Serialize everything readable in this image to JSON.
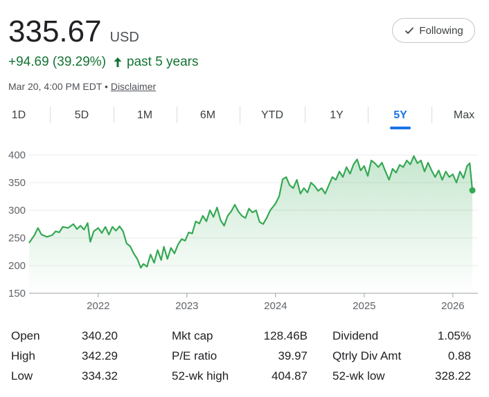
{
  "quote": {
    "price": "335.67",
    "currency": "USD",
    "change": "+94.69 (39.29%)",
    "change_period": "past 5 years",
    "timestamp": "Mar 20, 4:00 PM EDT",
    "separator": "•",
    "disclaimer": "Disclaimer",
    "follow_label": "Following"
  },
  "ranges": [
    {
      "label": "1D",
      "active": false
    },
    {
      "label": "5D",
      "active": false
    },
    {
      "label": "1M",
      "active": false
    },
    {
      "label": "6M",
      "active": false
    },
    {
      "label": "YTD",
      "active": false
    },
    {
      "label": "1Y",
      "active": false
    },
    {
      "label": "5Y",
      "active": true
    },
    {
      "label": "Max",
      "active": false
    }
  ],
  "colors": {
    "line": "#34a853",
    "positive_text": "#137333",
    "accent": "#1a73e8"
  },
  "chart_data": {
    "type": "area",
    "x_unit": "year",
    "ylim": [
      150,
      400
    ],
    "xlim": [
      2021.22,
      2026.22
    ],
    "y_ticks": [
      150,
      200,
      250,
      300,
      350,
      400
    ],
    "x_ticks": [
      "2022",
      "2023",
      "2024",
      "2025",
      "2026"
    ],
    "x_tick_values": [
      2022,
      2023,
      2024,
      2025,
      2026
    ],
    "grid": true,
    "series": [
      {
        "points": [
          [
            2021.22,
            241
          ],
          [
            2021.28,
            255
          ],
          [
            2021.32,
            268
          ],
          [
            2021.36,
            256
          ],
          [
            2021.42,
            252
          ],
          [
            2021.48,
            255
          ],
          [
            2021.52,
            262
          ],
          [
            2021.56,
            260
          ],
          [
            2021.6,
            270
          ],
          [
            2021.66,
            268
          ],
          [
            2021.72,
            275
          ],
          [
            2021.76,
            266
          ],
          [
            2021.8,
            272
          ],
          [
            2021.84,
            265
          ],
          [
            2021.88,
            277
          ],
          [
            2021.91,
            243
          ],
          [
            2021.95,
            262
          ],
          [
            2022.0,
            268
          ],
          [
            2022.04,
            259
          ],
          [
            2022.08,
            270
          ],
          [
            2022.12,
            256
          ],
          [
            2022.16,
            270
          ],
          [
            2022.2,
            263
          ],
          [
            2022.24,
            271
          ],
          [
            2022.28,
            262
          ],
          [
            2022.32,
            240
          ],
          [
            2022.36,
            235
          ],
          [
            2022.4,
            222
          ],
          [
            2022.44,
            212
          ],
          [
            2022.48,
            196
          ],
          [
            2022.51,
            203
          ],
          [
            2022.55,
            198
          ],
          [
            2022.59,
            220
          ],
          [
            2022.63,
            205
          ],
          [
            2022.67,
            228
          ],
          [
            2022.71,
            210
          ],
          [
            2022.74,
            234
          ],
          [
            2022.78,
            212
          ],
          [
            2022.82,
            232
          ],
          [
            2022.86,
            222
          ],
          [
            2022.9,
            238
          ],
          [
            2022.94,
            248
          ],
          [
            2022.98,
            245
          ],
          [
            2023.02,
            260
          ],
          [
            2023.06,
            258
          ],
          [
            2023.1,
            280
          ],
          [
            2023.14,
            276
          ],
          [
            2023.18,
            290
          ],
          [
            2023.22,
            280
          ],
          [
            2023.26,
            300
          ],
          [
            2023.3,
            288
          ],
          [
            2023.34,
            305
          ],
          [
            2023.38,
            282
          ],
          [
            2023.42,
            272
          ],
          [
            2023.46,
            290
          ],
          [
            2023.5,
            298
          ],
          [
            2023.54,
            310
          ],
          [
            2023.58,
            298
          ],
          [
            2023.62,
            290
          ],
          [
            2023.66,
            286
          ],
          [
            2023.7,
            303
          ],
          [
            2023.74,
            296
          ],
          [
            2023.78,
            300
          ],
          [
            2023.82,
            279
          ],
          [
            2023.86,
            275
          ],
          [
            2023.9,
            286
          ],
          [
            2023.94,
            300
          ],
          [
            2024.0,
            312
          ],
          [
            2024.04,
            325
          ],
          [
            2024.08,
            356
          ],
          [
            2024.12,
            360
          ],
          [
            2024.16,
            345
          ],
          [
            2024.2,
            340
          ],
          [
            2024.24,
            355
          ],
          [
            2024.28,
            330
          ],
          [
            2024.32,
            340
          ],
          [
            2024.36,
            332
          ],
          [
            2024.4,
            350
          ],
          [
            2024.44,
            344
          ],
          [
            2024.48,
            335
          ],
          [
            2024.52,
            340
          ],
          [
            2024.56,
            330
          ],
          [
            2024.6,
            345
          ],
          [
            2024.64,
            360
          ],
          [
            2024.68,
            355
          ],
          [
            2024.72,
            370
          ],
          [
            2024.76,
            360
          ],
          [
            2024.8,
            378
          ],
          [
            2024.84,
            366
          ],
          [
            2024.88,
            383
          ],
          [
            2024.92,
            392
          ],
          [
            2024.96,
            372
          ],
          [
            2025.0,
            380
          ],
          [
            2025.04,
            362
          ],
          [
            2025.08,
            390
          ],
          [
            2025.12,
            385
          ],
          [
            2025.16,
            378
          ],
          [
            2025.2,
            386
          ],
          [
            2025.24,
            370
          ],
          [
            2025.28,
            355
          ],
          [
            2025.32,
            375
          ],
          [
            2025.36,
            368
          ],
          [
            2025.4,
            382
          ],
          [
            2025.44,
            378
          ],
          [
            2025.48,
            390
          ],
          [
            2025.52,
            383
          ],
          [
            2025.56,
            398
          ],
          [
            2025.6,
            385
          ],
          [
            2025.64,
            390
          ],
          [
            2025.68,
            370
          ],
          [
            2025.72,
            386
          ],
          [
            2025.76,
            372
          ],
          [
            2025.8,
            360
          ],
          [
            2025.84,
            372
          ],
          [
            2025.88,
            355
          ],
          [
            2025.92,
            370
          ],
          [
            2025.96,
            360
          ],
          [
            2026.0,
            365
          ],
          [
            2026.04,
            350
          ],
          [
            2026.08,
            370
          ],
          [
            2026.12,
            358
          ],
          [
            2026.16,
            380
          ],
          [
            2026.19,
            385
          ],
          [
            2026.22,
            336
          ]
        ]
      }
    ]
  },
  "stats": [
    [
      {
        "label": "Open",
        "value": "340.20"
      },
      {
        "label": "Mkt cap",
        "value": "128.46B"
      },
      {
        "label": "Dividend",
        "value": "1.05%"
      }
    ],
    [
      {
        "label": "High",
        "value": "342.29"
      },
      {
        "label": "P/E ratio",
        "value": "39.97"
      },
      {
        "label": "Qtrly Div Amt",
        "value": "0.88"
      }
    ],
    [
      {
        "label": "Low",
        "value": "334.32"
      },
      {
        "label": "52-wk high",
        "value": "404.87"
      },
      {
        "label": "52-wk low",
        "value": "328.22"
      }
    ]
  ]
}
